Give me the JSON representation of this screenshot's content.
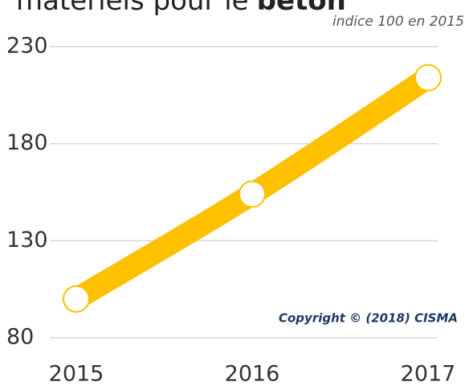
{
  "chart_data": {
    "type": "line",
    "title": [
      "matériels pour le",
      "béton"
    ],
    "subtitle": "indice 100 en 2015",
    "annotation": "Copyright © (2018) CISMA",
    "categories": [
      "2015",
      "2016",
      "2017"
    ],
    "series": [
      {
        "name": "indice",
        "color": "#ffc000",
        "values": [
          100,
          154,
          214
        ]
      }
    ],
    "ylim": [
      80,
      230
    ],
    "yticks": [
      80,
      130,
      180,
      230
    ],
    "grid": true
  }
}
